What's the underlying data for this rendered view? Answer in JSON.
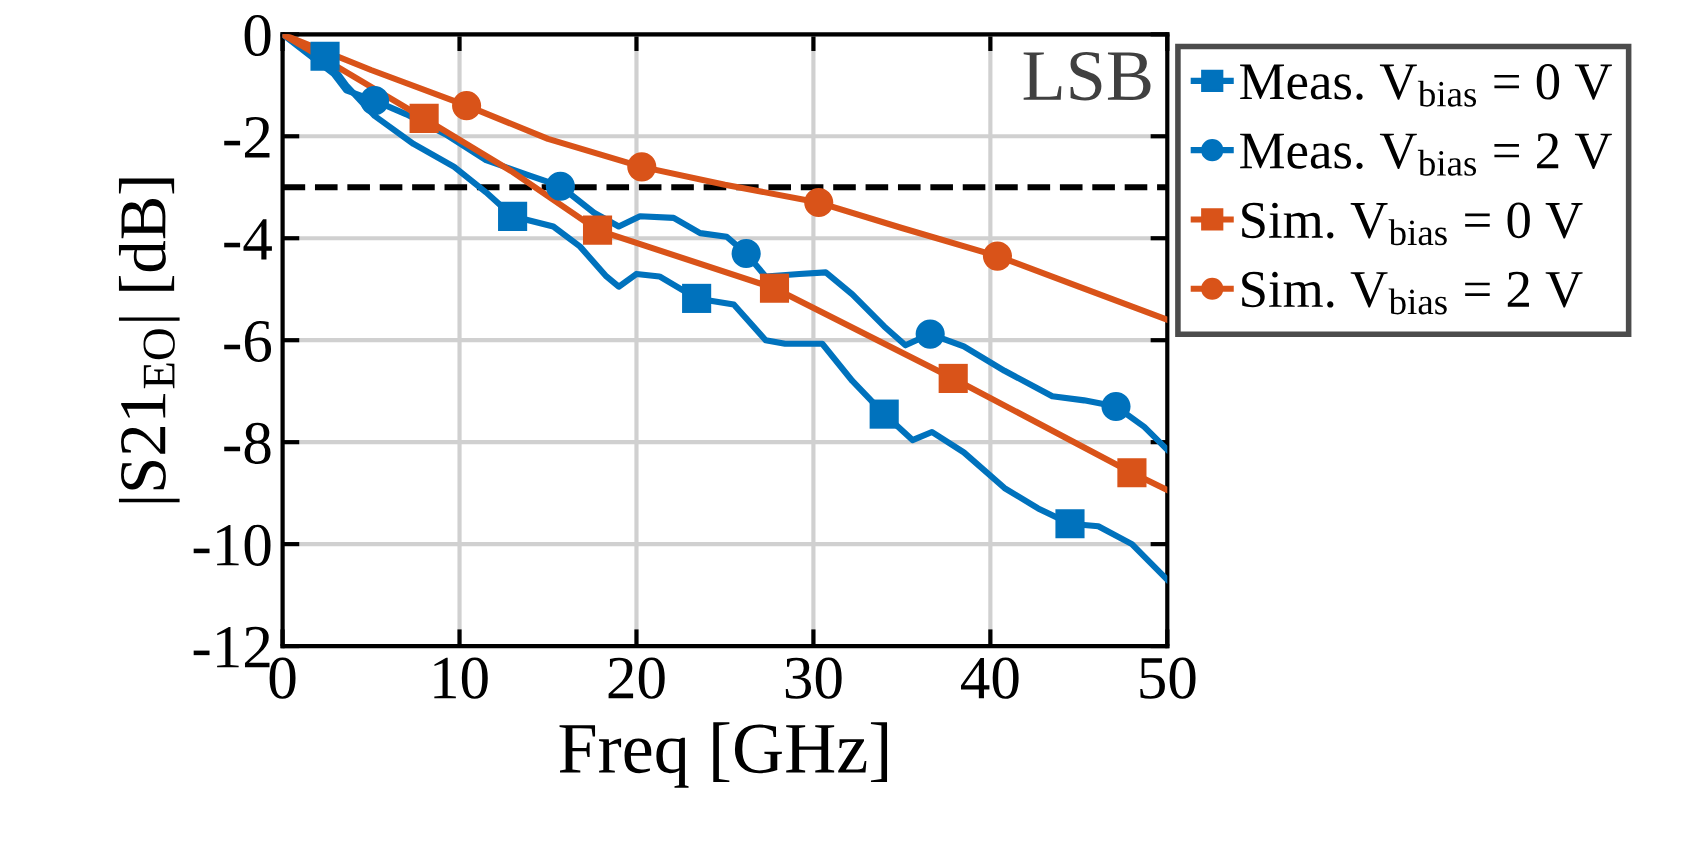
{
  "chart_data": {
    "type": "line",
    "xlabel": "Freq [GHz]",
    "ylabel": "|S21$_{EO}$| [dB]",
    "xlim": [
      0,
      50
    ],
    "ylim": [
      -12,
      0
    ],
    "xticks": [
      0,
      10,
      20,
      30,
      40,
      50
    ],
    "yticks": [
      {
        "value": -12,
        "label": "-12"
      },
      {
        "value": -10,
        "label": "-10"
      },
      {
        "value": -8,
        "label": "-8"
      },
      {
        "value": -6,
        "label": "-6"
      },
      {
        "value": -4,
        "label": "-4"
      },
      {
        "value": -2,
        "label": "-2"
      },
      0
    ],
    "grid": true,
    "legend": "right",
    "annotations": [
      "LSB"
    ],
    "ref_lines": [
      {
        "axis": "y",
        "value": -3,
        "color": "#000000",
        "line_style": "dashed"
      }
    ],
    "series": [
      {
        "color": "#0072bd",
        "x": [
          0,
          2.4,
          3.6,
          5.2,
          7.4,
          9.7,
          11.5,
          13,
          15.3,
          16.8,
          18.3,
          19.0,
          20,
          21.3,
          23.4,
          25.5,
          27.3,
          28.4,
          30.5,
          32.2,
          34,
          35.6,
          36.7,
          38.5,
          40.8,
          42.7,
          44.5,
          46.1,
          48,
          50
        ],
        "values": [
          0,
          -0.43,
          -1.0,
          -1.6,
          -2.15,
          -2.6,
          -3.1,
          -3.57,
          -3.77,
          -4.16,
          -4.75,
          -4.95,
          -4.7,
          -4.75,
          -5.18,
          -5.3,
          -6.0,
          -6.07,
          -6.07,
          -6.8,
          -7.45,
          -7.96,
          -7.8,
          -8.2,
          -8.9,
          -9.3,
          -9.6,
          -9.65,
          -10.0,
          -10.7
        ]
      },
      {
        "color": "#0072bd",
        "x": [
          0,
          2.9,
          3.6,
          5.2,
          7,
          9.2,
          11.5,
          13.8,
          15.7,
          17.6,
          19,
          20.2,
          22.1,
          23.6,
          25.1,
          26.2,
          27.3,
          29.2,
          30.7,
          32.2,
          34,
          35.2,
          36.6,
          38.5,
          40.8,
          43.5,
          45.3,
          47.1,
          48.7,
          50
        ],
        "values": [
          0,
          -0.78,
          -1.1,
          -1.3,
          -1.57,
          -1.96,
          -2.47,
          -2.75,
          -2.98,
          -3.5,
          -3.77,
          -3.57,
          -3.6,
          -3.9,
          -3.97,
          -4.3,
          -4.75,
          -4.7,
          -4.67,
          -5.1,
          -5.73,
          -6.1,
          -5.88,
          -6.12,
          -6.6,
          -7.1,
          -7.18,
          -7.3,
          -7.7,
          -8.15
        ]
      },
      {
        "color": "#d95319",
        "x": [
          0,
          8.0,
          13,
          17.8,
          27.8,
          37.9,
          48,
          50
        ],
        "values": [
          0,
          -1.65,
          -2.7,
          -3.84,
          -4.98,
          -6.75,
          -8.6,
          -8.94
        ]
      },
      {
        "color": "#d95319",
        "x": [
          0,
          5,
          10.4,
          15,
          20.3,
          25,
          30.3,
          35,
          40.4,
          45,
          50
        ],
        "values": [
          0,
          -0.7,
          -1.4,
          -2.05,
          -2.6,
          -2.95,
          -3.3,
          -3.8,
          -4.35,
          -4.95,
          -5.6
        ]
      },
      {
        "type": "scatter",
        "name": "Meas. V$_{bias}$ = 0 V",
        "color": "#0072bd",
        "marker": "square",
        "x": [
          2.4,
          13,
          23.4,
          34,
          44.5
        ],
        "values": [
          -0.43,
          -3.57,
          -5.18,
          -7.45,
          -9.6
        ]
      },
      {
        "type": "scatter",
        "name": "Meas. V$_{bias}$ = 2 V",
        "color": "#0072bd",
        "marker": "circle",
        "x": [
          5.2,
          15.7,
          26.2,
          36.6,
          47.1
        ],
        "values": [
          -1.3,
          -2.98,
          -4.3,
          -5.88,
          -7.3
        ]
      },
      {
        "type": "scatter",
        "name": "Sim. V$_{bias}$ = 0 V",
        "color": "#d95319",
        "marker": "square",
        "x": [
          8.0,
          17.8,
          27.8,
          37.9,
          48
        ],
        "values": [
          -1.65,
          -3.84,
          -4.98,
          -6.75,
          -8.6
        ]
      },
      {
        "type": "scatter",
        "name": "Sim. V$_{bias}$ = 2 V",
        "color": "#d95319",
        "marker": "circle",
        "x": [
          10.4,
          20.3,
          30.3,
          40.4
        ],
        "values": [
          -1.4,
          -2.6,
          -3.3,
          -4.35
        ]
      }
    ]
  }
}
